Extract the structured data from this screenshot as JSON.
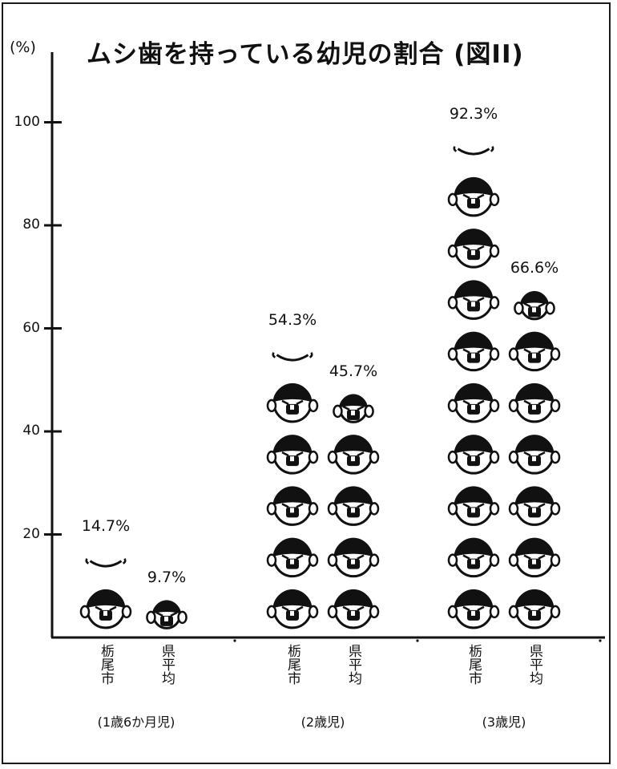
{
  "chart_data": {
    "type": "bar",
    "title": "ムシ歯を持っている幼児の割合 (図II)",
    "ylabel": "(%)",
    "ylim": [
      0,
      100
    ],
    "yticks": [
      20,
      40,
      60,
      80,
      100
    ],
    "bar_style": "stacked child-face pictograms (1 face = 10%)",
    "groups": [
      {
        "label": "(1歳6か月児)",
        "bars": [
          {
            "name": "栃尾市",
            "value": 14.7,
            "label": "14.7%"
          },
          {
            "name": "県平均",
            "value": 9.7,
            "label": "9.7%"
          }
        ]
      },
      {
        "label": "(2歳児)",
        "bars": [
          {
            "name": "栃尾市",
            "value": 54.3,
            "label": "54.3%"
          },
          {
            "name": "県平均",
            "value": 45.7,
            "label": "45.7%"
          }
        ]
      },
      {
        "label": "(3歳児)",
        "bars": [
          {
            "name": "栃尾市",
            "value": 92.3,
            "label": "92.3%"
          },
          {
            "name": "県平均",
            "value": 66.6,
            "label": "66.6%"
          }
        ]
      }
    ],
    "grid": false,
    "colors": {
      "ink": "#111111",
      "paper": "#ffffff"
    }
  }
}
